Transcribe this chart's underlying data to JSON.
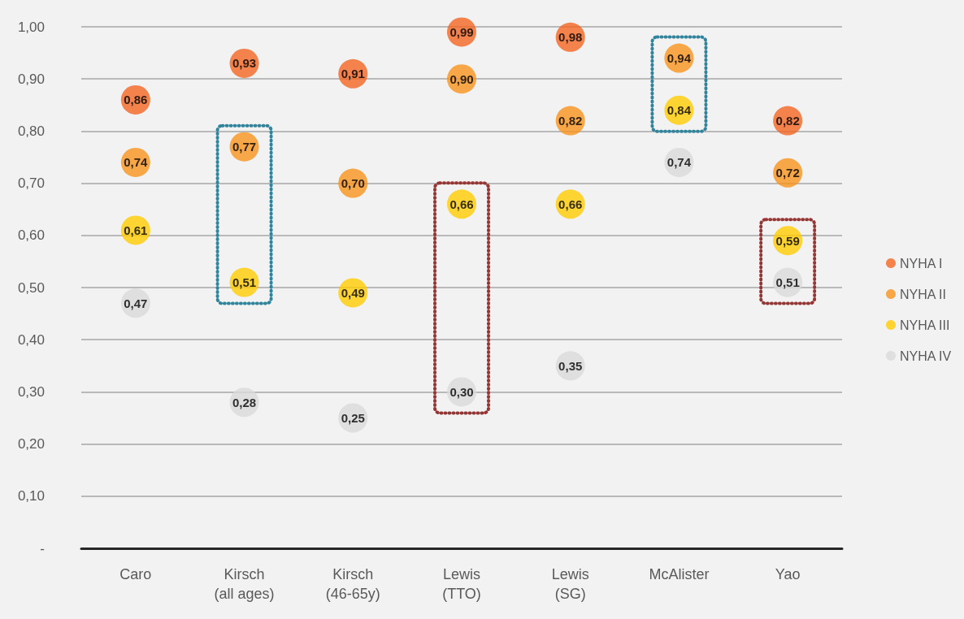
{
  "chart_data": {
    "type": "scatter",
    "categories": [
      "Caro",
      "Kirsch\n(all ages)",
      "Kirsch\n(46-65y)",
      "Lewis\n(TTO)",
      "Lewis\n(SG)",
      "McAlister",
      "Yao"
    ],
    "series": [
      {
        "name": "NYHA I",
        "color": "#f26522",
        "values": [
          0.86,
          0.93,
          0.91,
          0.99,
          0.98,
          null,
          0.82
        ],
        "value_labels": [
          "0,86",
          "0,93",
          "0,91",
          "0,99",
          "0,98",
          null,
          "0,82"
        ]
      },
      {
        "name": "NYHA II",
        "color": "#f7941d",
        "values": [
          0.74,
          0.77,
          0.7,
          0.9,
          0.82,
          0.94,
          0.72
        ],
        "value_labels": [
          "0,74",
          "0,77",
          "0,70",
          "0,90",
          "0,82",
          "0,94",
          "0,72"
        ]
      },
      {
        "name": "NYHA III",
        "color": "#ffcc00",
        "values": [
          0.61,
          0.51,
          0.49,
          0.66,
          0.66,
          0.84,
          0.59
        ],
        "value_labels": [
          "0,61",
          "0,51",
          "0,49",
          "0,66",
          "0,66",
          "0,84",
          "0,59"
        ]
      },
      {
        "name": "NYHA IV",
        "color": "#d9d9d9",
        "values": [
          0.47,
          0.28,
          0.25,
          0.3,
          0.35,
          0.74,
          0.51
        ],
        "value_labels": [
          "0,47",
          "0,28",
          "0,25",
          "0,30",
          "0,35",
          "0,74",
          "0,51"
        ]
      }
    ],
    "ylim": [
      0,
      1
    ],
    "yticks": [
      {
        "value": 0,
        "label": "-"
      },
      {
        "value": 0.1,
        "label": "0,10"
      },
      {
        "value": 0.2,
        "label": "0,20"
      },
      {
        "value": 0.3,
        "label": "0,30"
      },
      {
        "value": 0.4,
        "label": "0,40"
      },
      {
        "value": 0.5,
        "label": "0,50"
      },
      {
        "value": 0.6,
        "label": "0,60"
      },
      {
        "value": 0.7,
        "label": "0,70"
      },
      {
        "value": 0.8,
        "label": "0,80"
      },
      {
        "value": 0.9,
        "label": "0,90"
      },
      {
        "value": 1,
        "label": "1,00"
      }
    ],
    "grid": "y",
    "legend": "right",
    "marker": "circle"
  }
}
